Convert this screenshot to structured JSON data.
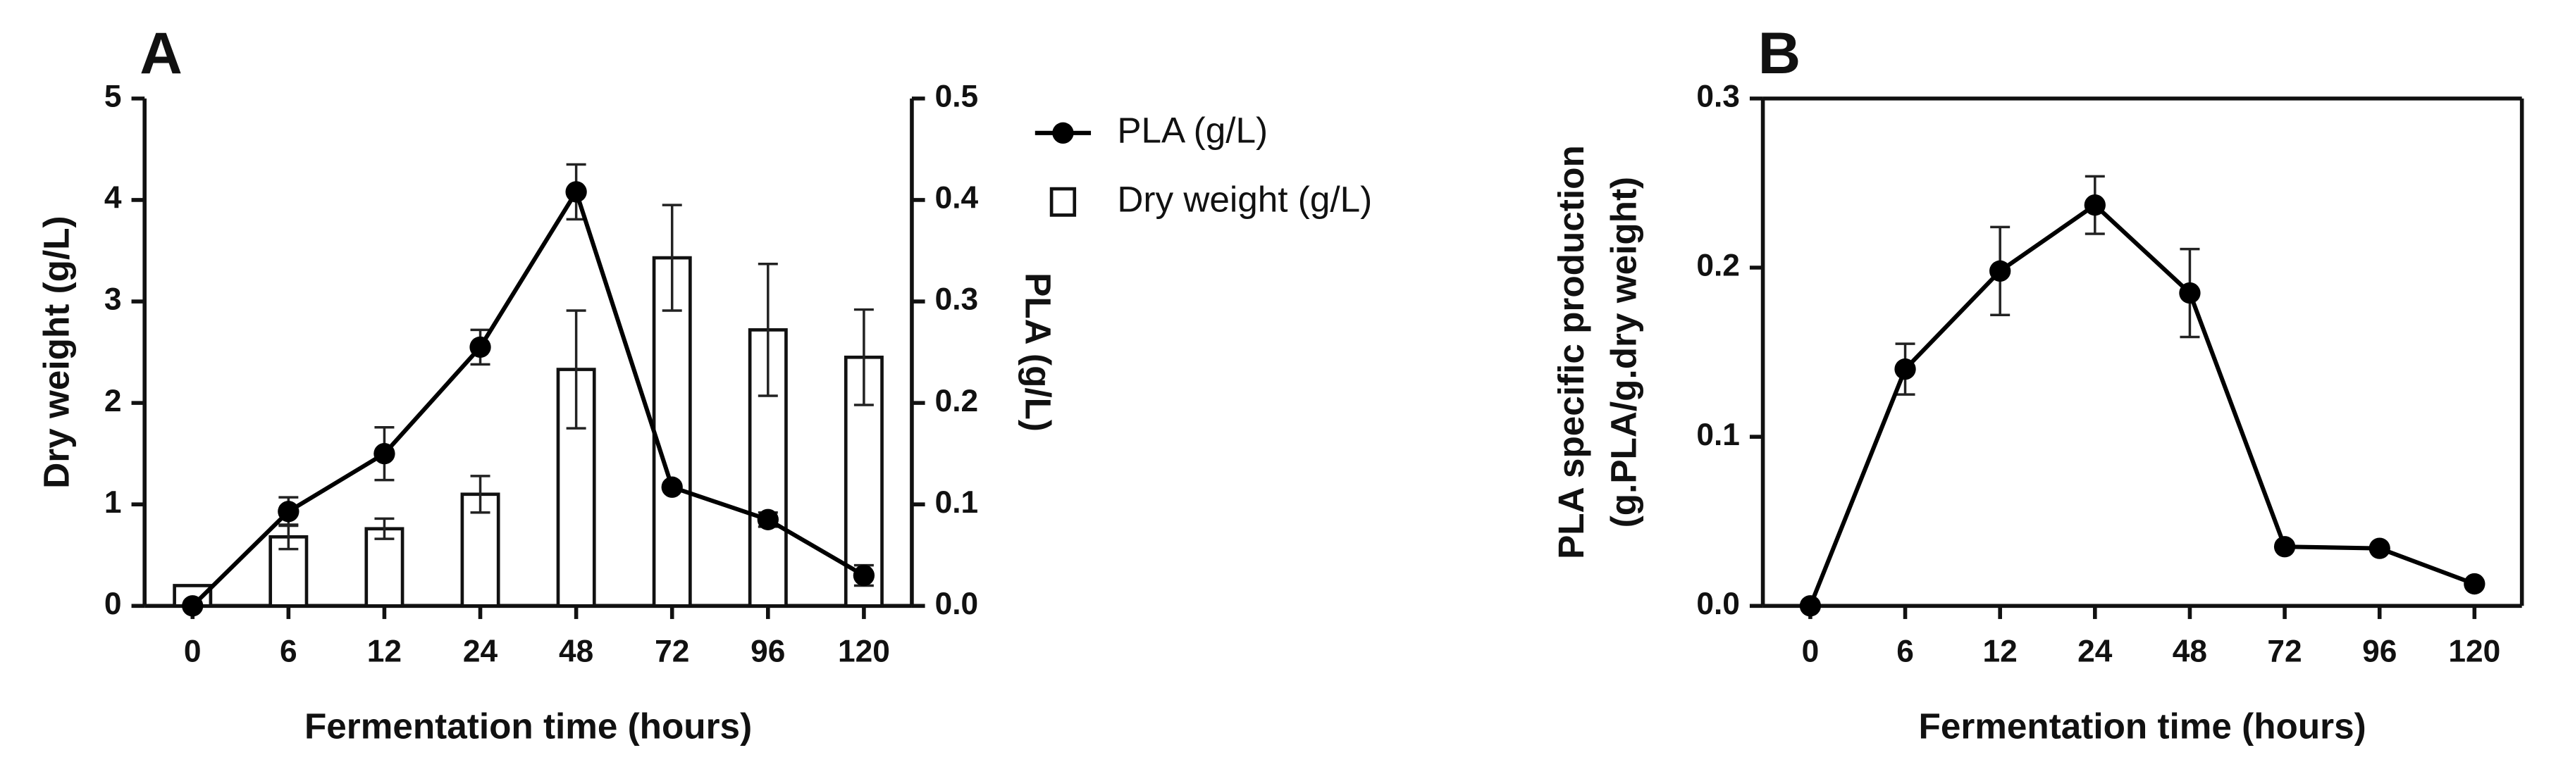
{
  "chart_data": [
    {
      "type": "combo",
      "panel_label": "A",
      "x_label": "Fermentation time (hours)",
      "y_label": "Dry weight (g/L)",
      "y2_label": "PLA (g/L)",
      "categories": [
        "0",
        "6",
        "12",
        "24",
        "48",
        "72",
        "96",
        "120"
      ],
      "ylim": [
        0,
        5
      ],
      "yticks": [
        0,
        1,
        2,
        3,
        4,
        5
      ],
      "y2lim": [
        0,
        0.5
      ],
      "y2ticks": [
        {
          "value": 0,
          "label": "0.0"
        },
        {
          "value": 0.1,
          "label": "0.1"
        },
        {
          "value": 0.2,
          "label": "0.2"
        },
        {
          "value": 0.3,
          "label": "0.3"
        },
        {
          "value": 0.4,
          "label": "0.4"
        },
        {
          "value": 0.5,
          "label": "0.5"
        }
      ],
      "legend": "right",
      "series": [
        {
          "name": "PLA (g/L)",
          "kind": "line",
          "axis": "y2",
          "color": "#000000",
          "values": [
            0,
            0.093,
            0.15,
            0.255,
            0.408,
            0.117,
            0.085,
            0.03
          ],
          "errors": [
            0,
            0.014,
            0.026,
            0.017,
            0.027,
            0,
            0.007,
            0.01
          ]
        },
        {
          "name": "Dry weight (g/L)",
          "kind": "bar",
          "color": "#ffffff",
          "values": [
            0.2,
            0.68,
            0.76,
            1.1,
            2.33,
            3.43,
            2.72,
            2.45
          ],
          "errors": [
            0,
            0.12,
            0.1,
            0.18,
            0.58,
            0.52,
            0.65,
            0.47
          ]
        }
      ]
    },
    {
      "type": "line",
      "panel_label": "B",
      "x_label": "Fermentation time (hours)",
      "y_label": [
        "PLA specific production",
        "(g.PLA/g.dry weight)"
      ],
      "categories": [
        "0",
        "6",
        "12",
        "24",
        "48",
        "72",
        "96",
        "120"
      ],
      "ylim": [
        0,
        0.3
      ],
      "yticks": [
        {
          "value": 0,
          "label": "0.0"
        },
        {
          "value": 0.1,
          "label": "0.1"
        },
        {
          "value": 0.2,
          "label": "0.2"
        },
        {
          "value": 0.3,
          "label": "0.3"
        }
      ],
      "box": true,
      "series": [
        {
          "kind": "line",
          "color": "#000000",
          "values": [
            0,
            0.14,
            0.198,
            0.237,
            0.185,
            0.035,
            0.034,
            0.013
          ],
          "errors": [
            0,
            0.015,
            0.026,
            0.017,
            0.026,
            0,
            0,
            0
          ]
        }
      ]
    }
  ]
}
